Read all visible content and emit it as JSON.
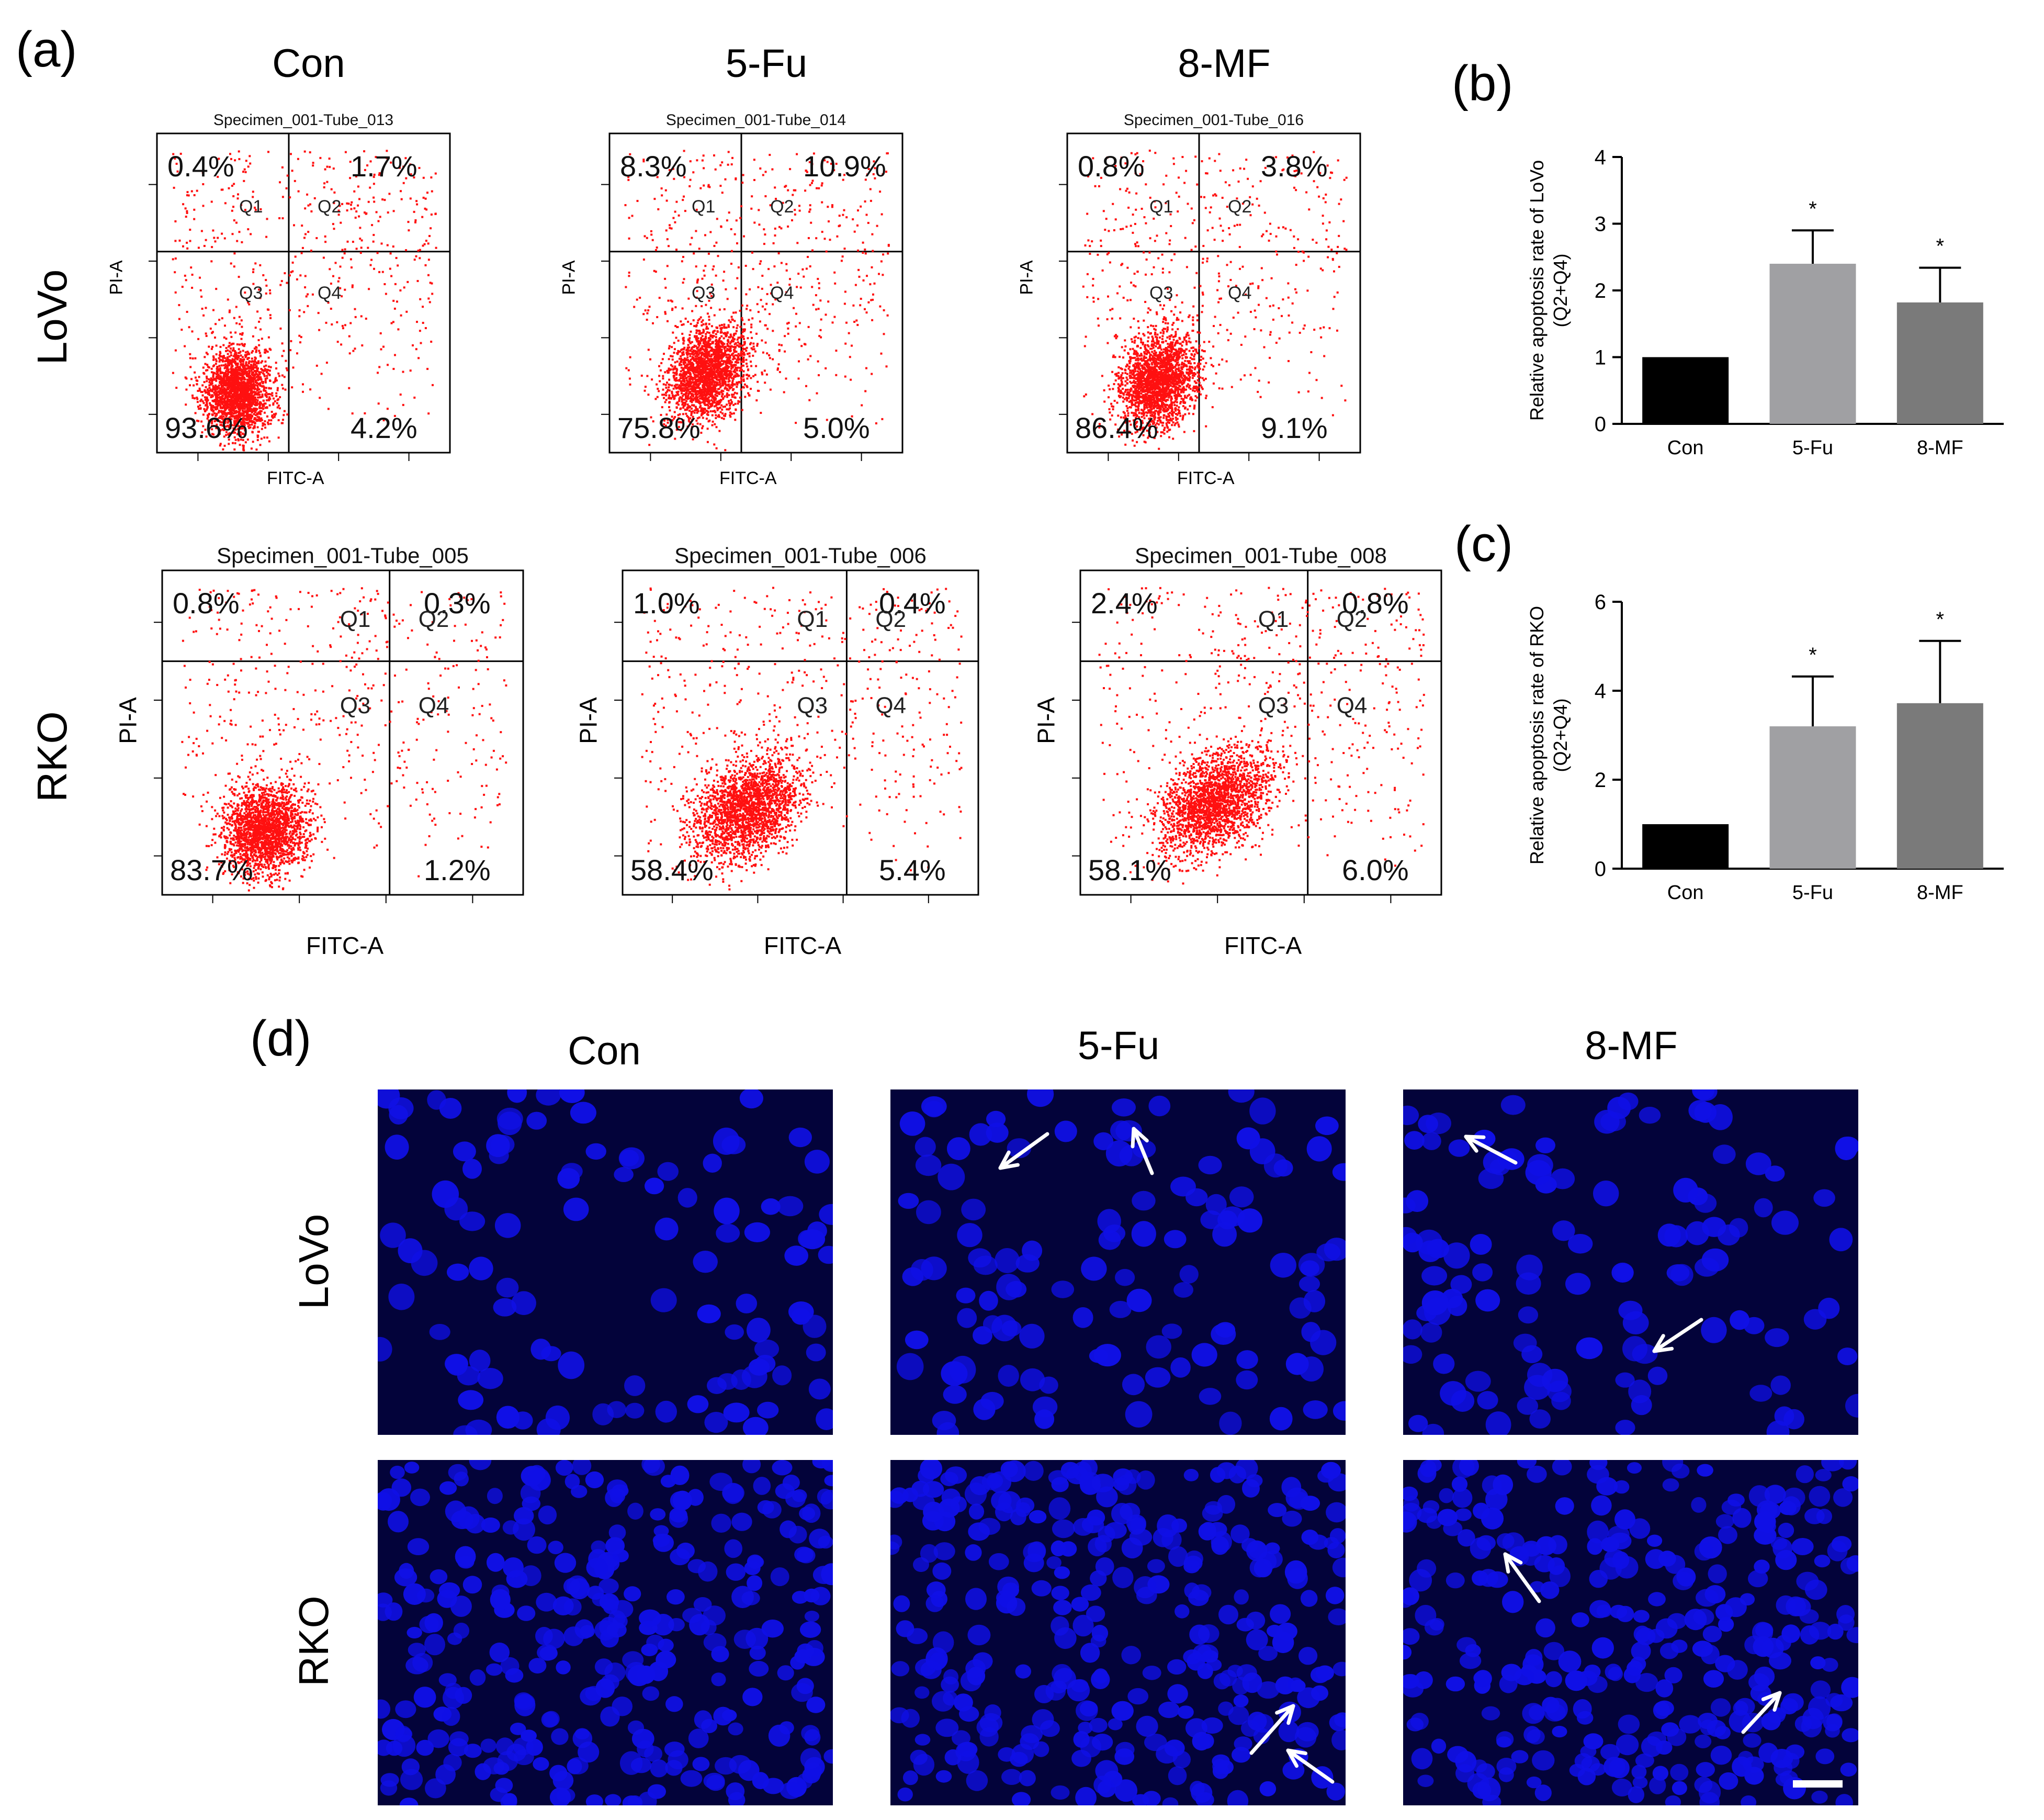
{
  "panels": {
    "a": "(a)",
    "b": "(b)",
    "c": "(c)",
    "d": "(d)"
  },
  "columns": [
    "Con",
    "5-Fu",
    "8-MF"
  ],
  "rows": [
    "LoVo",
    "RKO"
  ],
  "flow": {
    "x_label": "FITC-A",
    "y_label": "PI-A",
    "quadrants": [
      "Q1",
      "Q2",
      "Q3",
      "Q4"
    ],
    "plots": [
      {
        "cell": "LoVo",
        "treatment": "Con",
        "specimen": "Specimen_001-Tube_013",
        "q1": "0.4%",
        "q2": "1.7%",
        "q3": "93.6%",
        "q4": "4.2%",
        "spread": 0.0
      },
      {
        "cell": "LoVo",
        "treatment": "5-Fu",
        "specimen": "Specimen_001-Tube_014",
        "q1": "8.3%",
        "q2": "10.9%",
        "q3": "75.8%",
        "q4": "5.0%",
        "spread": 0.5
      },
      {
        "cell": "LoVo",
        "treatment": "8-MF",
        "specimen": "Specimen_001-Tube_016",
        "q1": "0.8%",
        "q2": "3.8%",
        "q3": "86.4%",
        "q4": "9.1%",
        "spread": 0.3
      },
      {
        "cell": "RKO",
        "treatment": "Con",
        "specimen": "Specimen_001-Tube_005",
        "q1": "0.8%",
        "q2": "0.3%",
        "q3": "83.7%",
        "q4": "1.2%",
        "spread": 0.1
      },
      {
        "cell": "RKO",
        "treatment": "5-Fu",
        "specimen": "Specimen_001-Tube_006",
        "q1": "1.0%",
        "q2": "0.4%",
        "q3": "58.4%",
        "q4": "5.4%",
        "spread": 0.6
      },
      {
        "cell": "RKO",
        "treatment": "8-MF",
        "specimen": "Specimen_001-Tube_008",
        "q1": "2.4%",
        "q2": "0.8%",
        "q3": "58.1%",
        "q4": "6.0%",
        "spread": 0.8
      }
    ]
  },
  "chart_data": [
    {
      "type": "bar",
      "panel": "(b)",
      "categories": [
        "Con",
        "5-Fu",
        "8-MF"
      ],
      "values": [
        1.0,
        2.4,
        1.82
      ],
      "errors": [
        0,
        0.5,
        0.52
      ],
      "significance": [
        "",
        "*",
        "*"
      ],
      "ylabel": "Relative apoptosis rate of LoVo",
      "ylabel2": "(Q2+Q4)",
      "ylim": [
        0,
        4
      ],
      "yticks": [
        0,
        1,
        2,
        3,
        4
      ],
      "colors": [
        "#000000",
        "#a0a0a3",
        "#7a7a7a"
      ]
    },
    {
      "type": "bar",
      "panel": "(c)",
      "categories": [
        "Con",
        "5-Fu",
        "8-MF"
      ],
      "values": [
        1.0,
        3.2,
        3.72
      ],
      "errors": [
        0,
        1.12,
        1.4
      ],
      "significance": [
        "",
        "*",
        "*"
      ],
      "ylabel": "Relative apoptosis rate of RKO",
      "ylabel2": "(Q2+Q4)",
      "ylim": [
        0,
        6
      ],
      "yticks": [
        0,
        2,
        4,
        6
      ],
      "colors": [
        "#000000",
        "#a0a0a3",
        "#7a7a7a"
      ]
    }
  ],
  "micrographs": {
    "nucleus_color": "#1010e6",
    "background_color": "#03033a",
    "arrow_color": "#ffffff",
    "images": [
      {
        "cell": "LoVo",
        "treatment": "Con",
        "arrows": 0
      },
      {
        "cell": "LoVo",
        "treatment": "5-Fu",
        "arrows": 2
      },
      {
        "cell": "LoVo",
        "treatment": "8-MF",
        "arrows": 2
      },
      {
        "cell": "RKO",
        "treatment": "Con",
        "arrows": 0
      },
      {
        "cell": "RKO",
        "treatment": "5-Fu",
        "arrows": 2
      },
      {
        "cell": "RKO",
        "treatment": "8-MF",
        "arrows": 2
      }
    ],
    "scale_bar": true
  }
}
